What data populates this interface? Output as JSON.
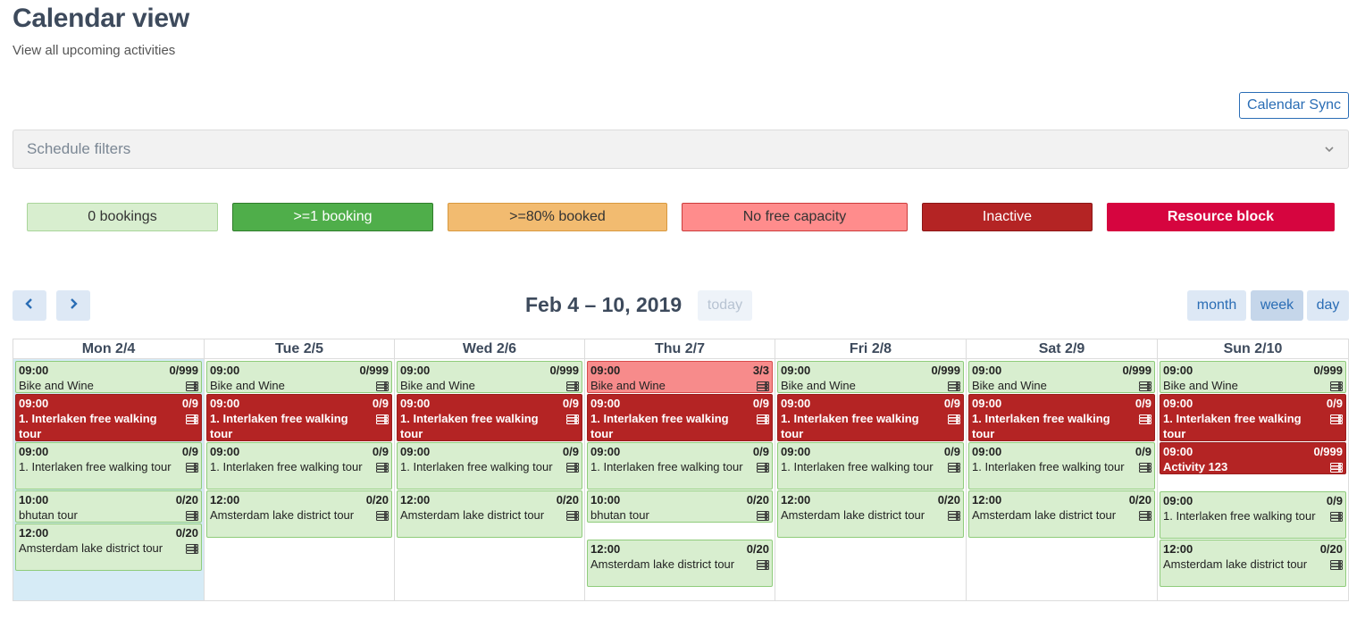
{
  "page": {
    "title": "Calendar view",
    "subtitle": "View all upcoming activities",
    "sync_label": "Calendar Sync"
  },
  "filters": {
    "label": "Schedule filters"
  },
  "legend": [
    {
      "label": "0 bookings",
      "bg": "#d8eecf",
      "color": "#333333"
    },
    {
      "label": ">=1 booking",
      "bg": "#4fae4a",
      "color": "#ffffff"
    },
    {
      "label": ">=80% booked",
      "bg": "#f2bb70",
      "color": "#333333"
    },
    {
      "label": "No free capacity",
      "bg": "#ff8c8c",
      "color": "#333333"
    },
    {
      "label": "Inactive",
      "bg": "#b42424",
      "color": "#ffffff"
    },
    {
      "label": "Resource block",
      "bg": "#d6053f",
      "color": "#ffffff"
    }
  ],
  "toolbar": {
    "range": "Feb 4 – 10, 2019",
    "today_label": "today",
    "views": [
      "month",
      "week",
      "day"
    ],
    "active_view": "week"
  },
  "days": [
    {
      "label": "Mon 2/4",
      "today": true,
      "events": [
        {
          "time": "09:00",
          "count": "0/999",
          "name": "Bike and Wine",
          "status": "zero"
        },
        {
          "time": "09:00",
          "count": "0/9",
          "name": "1. Interlaken free walking tour",
          "status": "inactive"
        },
        {
          "time": "09:00",
          "count": "0/9",
          "name": "1. Interlaken free walking tour",
          "status": "zero"
        },
        {
          "time": "10:00",
          "count": "0/20",
          "name": "bhutan tour",
          "status": "zero"
        },
        {
          "time": "12:00",
          "count": "0/20",
          "name": "Amsterdam lake district tour",
          "status": "zero"
        }
      ]
    },
    {
      "label": "Tue 2/5",
      "today": false,
      "events": [
        {
          "time": "09:00",
          "count": "0/999",
          "name": "Bike and Wine",
          "status": "zero"
        },
        {
          "time": "09:00",
          "count": "0/9",
          "name": "1. Interlaken free walking tour",
          "status": "inactive"
        },
        {
          "time": "09:00",
          "count": "0/9",
          "name": "1. Interlaken free walking tour",
          "status": "zero"
        },
        {
          "time": "12:00",
          "count": "0/20",
          "name": "Amsterdam lake district tour",
          "status": "zero"
        }
      ]
    },
    {
      "label": "Wed 2/6",
      "today": false,
      "events": [
        {
          "time": "09:00",
          "count": "0/999",
          "name": "Bike and Wine",
          "status": "zero"
        },
        {
          "time": "09:00",
          "count": "0/9",
          "name": "1. Interlaken free walking tour",
          "status": "inactive"
        },
        {
          "time": "09:00",
          "count": "0/9",
          "name": "1. Interlaken free walking tour",
          "status": "zero"
        },
        {
          "time": "12:00",
          "count": "0/20",
          "name": "Amsterdam lake district tour",
          "status": "zero"
        }
      ]
    },
    {
      "label": "Thu 2/7",
      "today": false,
      "events": [
        {
          "time": "09:00",
          "count": "3/3",
          "name": "Bike and Wine",
          "status": "full"
        },
        {
          "time": "09:00",
          "count": "0/9",
          "name": "1. Interlaken free walking tour",
          "status": "inactive"
        },
        {
          "time": "09:00",
          "count": "0/9",
          "name": "1. Interlaken free walking tour",
          "status": "zero"
        },
        {
          "time": "10:00",
          "count": "0/20",
          "name": "bhutan tour",
          "status": "zero"
        },
        {
          "time": "12:00",
          "count": "0/20",
          "name": "Amsterdam lake district tour",
          "status": "zero"
        }
      ]
    },
    {
      "label": "Fri 2/8",
      "today": false,
      "events": [
        {
          "time": "09:00",
          "count": "0/999",
          "name": "Bike and Wine",
          "status": "zero"
        },
        {
          "time": "09:00",
          "count": "0/9",
          "name": "1. Interlaken free walking tour",
          "status": "inactive"
        },
        {
          "time": "09:00",
          "count": "0/9",
          "name": "1. Interlaken free walking tour",
          "status": "zero"
        },
        {
          "time": "12:00",
          "count": "0/20",
          "name": "Amsterdam lake district tour",
          "status": "zero"
        }
      ]
    },
    {
      "label": "Sat 2/9",
      "today": false,
      "events": [
        {
          "time": "09:00",
          "count": "0/999",
          "name": "Bike and Wine",
          "status": "zero"
        },
        {
          "time": "09:00",
          "count": "0/9",
          "name": "1. Interlaken free walking tour",
          "status": "inactive"
        },
        {
          "time": "09:00",
          "count": "0/9",
          "name": "1. Interlaken free walking tour",
          "status": "zero"
        },
        {
          "time": "12:00",
          "count": "0/20",
          "name": "Amsterdam lake district tour",
          "status": "zero"
        }
      ]
    },
    {
      "label": "Sun 2/10",
      "today": false,
      "events": [
        {
          "time": "09:00",
          "count": "0/999",
          "name": "Bike and Wine",
          "status": "zero"
        },
        {
          "time": "09:00",
          "count": "0/9",
          "name": "1. Interlaken free walking tour",
          "status": "inactive"
        },
        {
          "time": "09:00",
          "count": "0/999",
          "name": "Activity 123",
          "status": "inactive"
        },
        {
          "time": "09:00",
          "count": "0/9",
          "name": "1. Interlaken free walking tour",
          "status": "zero"
        },
        {
          "time": "12:00",
          "count": "0/20",
          "name": "Amsterdam lake district tour",
          "status": "zero"
        }
      ]
    }
  ]
}
